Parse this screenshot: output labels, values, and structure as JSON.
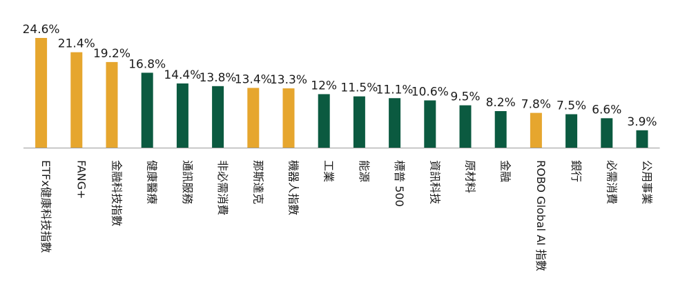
{
  "colors": {
    "highlight": "#E6A62E",
    "sector": "#0B5A40",
    "text": "#1a1a1a",
    "axis": "#9a9a9a"
  },
  "chart_data": {
    "type": "bar",
    "categories": [
      "ETFx健康科技指數",
      "FANG+",
      "金融科技指數",
      "健康醫療",
      "通訊服務",
      "非必需消費",
      "那斯達克",
      "機器人指數",
      "工業",
      "能源",
      "標普 500",
      "資訊科技",
      "原材料",
      "金融",
      "ROBO Global AI 指數",
      "銀行",
      "必需消費",
      "公用事業"
    ],
    "values": [
      24.6,
      21.4,
      19.2,
      16.8,
      14.4,
      13.8,
      13.4,
      13.3,
      12,
      11.5,
      11.1,
      10.6,
      9.5,
      8.2,
      7.8,
      7.5,
      6.6,
      3.9
    ],
    "value_labels": [
      "24.6%",
      "21.4%",
      "19.2%",
      "16.8%",
      "14.4%",
      "13.8%",
      "13.4%",
      "13.3%",
      "12%",
      "11.5%",
      "11.1%",
      "10.6%",
      "9.5%",
      "8.2%",
      "7.8%",
      "7.5%",
      "6.6%",
      "3.9%"
    ],
    "bar_colors": [
      "highlight",
      "highlight",
      "highlight",
      "sector",
      "sector",
      "sector",
      "highlight",
      "highlight",
      "sector",
      "sector",
      "sector",
      "sector",
      "sector",
      "sector",
      "highlight",
      "sector",
      "sector",
      "sector"
    ],
    "unit": "%",
    "title": "",
    "xlabel": "",
    "ylabel": "",
    "ylim": [
      0,
      24.6
    ],
    "grid": false,
    "legend": "none"
  }
}
